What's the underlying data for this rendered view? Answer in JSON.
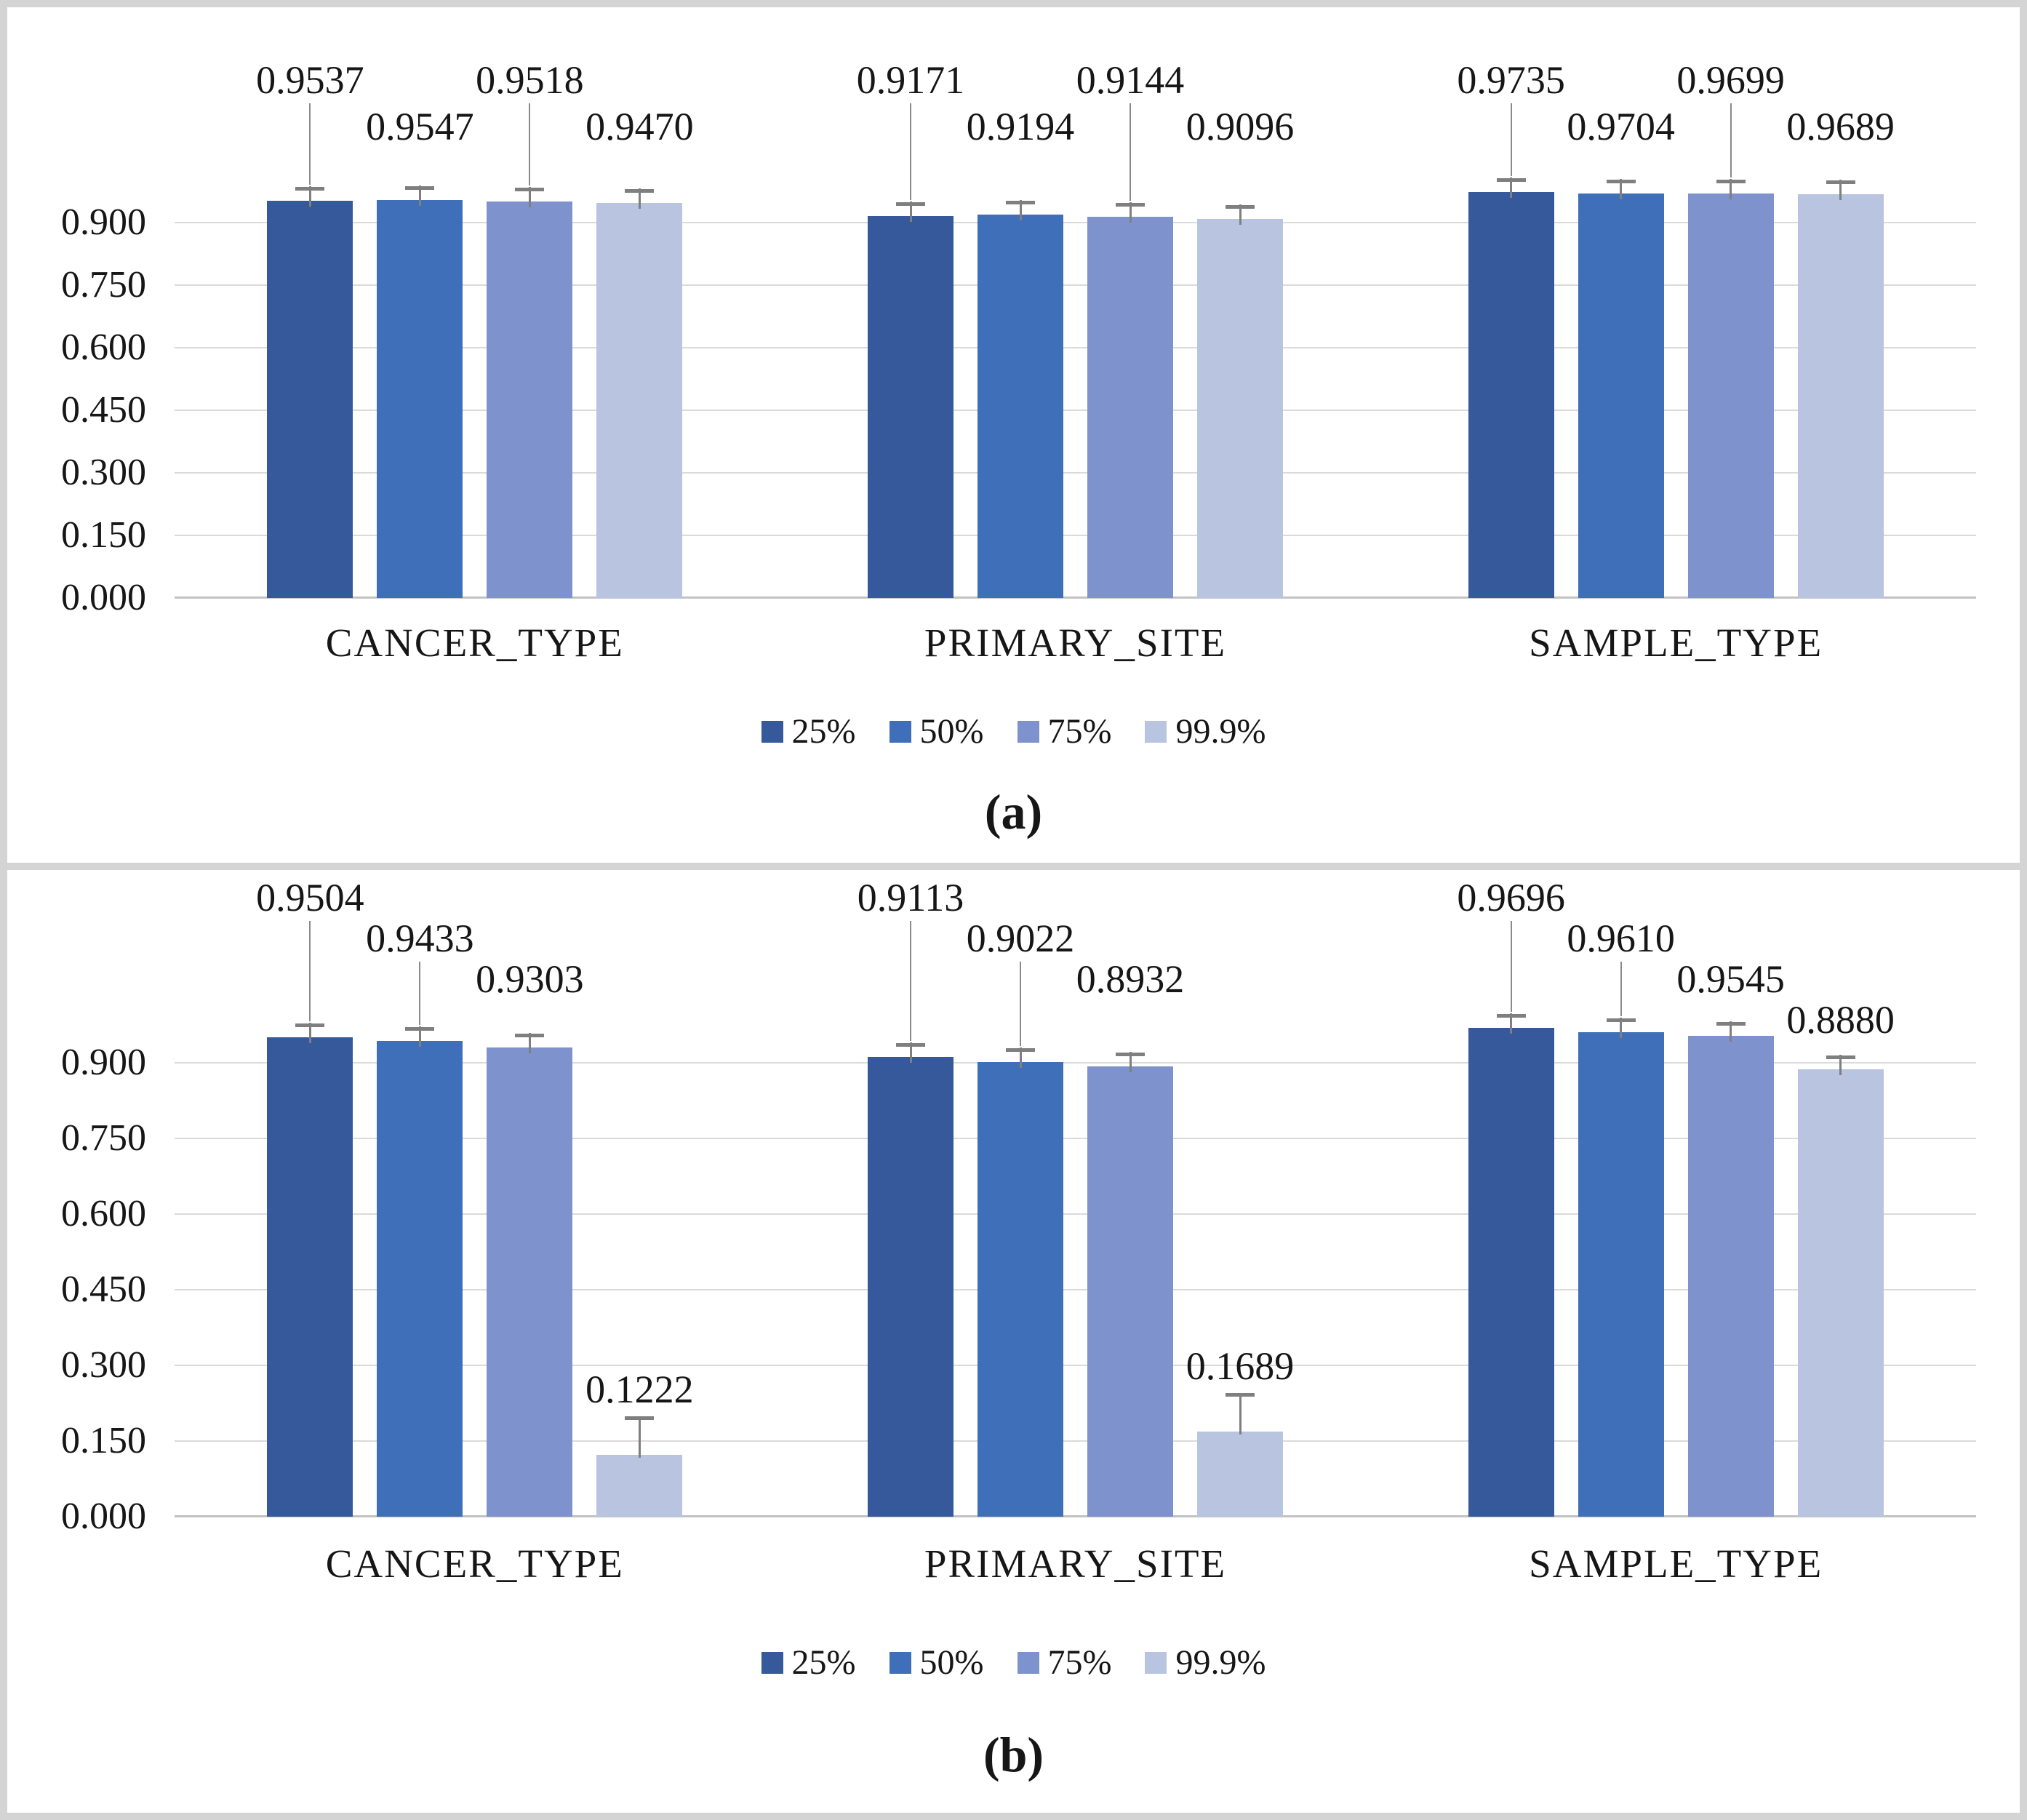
{
  "chart_data": [
    {
      "type": "bar",
      "panel_label": "(a)",
      "categories": [
        "CANCER_TYPE",
        "PRIMARY_SITE",
        "SAMPLE_TYPE"
      ],
      "series_names": [
        "25%",
        "50%",
        "75%",
        "99.9%"
      ],
      "series_colors": [
        "#35599B",
        "#3F6FB8",
        "#7E93CE",
        "#B9C4E1"
      ],
      "values": [
        [
          0.9537,
          0.9547,
          0.9518,
          0.947
        ],
        [
          0.9171,
          0.9194,
          0.9144,
          0.9096
        ],
        [
          0.9735,
          0.9704,
          0.9699,
          0.9689
        ]
      ],
      "value_labels": [
        [
          "0.9537",
          "0.9547",
          "0.9518",
          "0.9470"
        ],
        [
          "0.9171",
          "0.9194",
          "0.9144",
          "0.9096"
        ],
        [
          "0.9735",
          "0.9704",
          "0.9699",
          "0.9689"
        ]
      ],
      "yticks": [
        "0.000",
        "0.150",
        "0.300",
        "0.450",
        "0.600",
        "0.750",
        "0.900"
      ],
      "ytick_values": [
        0,
        0.15,
        0.3,
        0.45,
        0.6,
        0.75,
        0.9
      ],
      "ylim": [
        0,
        1.05
      ],
      "grid": true,
      "error_bars": true,
      "legend_position": "bottom",
      "label_rows": [
        [
          0,
          1,
          0,
          1
        ],
        [
          0,
          1,
          0,
          1
        ],
        [
          0,
          1,
          0,
          1
        ]
      ],
      "leaders": [
        [
          1,
          0,
          1,
          0
        ],
        [
          1,
          0,
          1,
          0
        ],
        [
          1,
          0,
          1,
          0
        ]
      ]
    },
    {
      "type": "bar",
      "panel_label": "(b)",
      "categories": [
        "CANCER_TYPE",
        "PRIMARY_SITE",
        "SAMPLE_TYPE"
      ],
      "series_names": [
        "25%",
        "50%",
        "75%",
        "99.9%"
      ],
      "series_colors": [
        "#35599B",
        "#3F6FB8",
        "#7E93CE",
        "#B9C4E1"
      ],
      "values": [
        [
          0.9504,
          0.9433,
          0.9303,
          0.1222
        ],
        [
          0.9113,
          0.9022,
          0.8932,
          0.1689
        ],
        [
          0.9696,
          0.961,
          0.9545,
          0.888
        ]
      ],
      "value_labels": [
        [
          "0.9504",
          "0.9433",
          "0.9303",
          "0.1222"
        ],
        [
          "0.9113",
          "0.9022",
          "0.8932",
          "0.1689"
        ],
        [
          "0.9696",
          "0.9610",
          "0.9545",
          "0.8880"
        ]
      ],
      "yticks": [
        "0.000",
        "0.150",
        "0.300",
        "0.450",
        "0.600",
        "0.750",
        "0.900"
      ],
      "ytick_values": [
        0,
        0.15,
        0.3,
        0.45,
        0.6,
        0.75,
        0.9
      ],
      "ylim": [
        0,
        1.05
      ],
      "grid": true,
      "error_bars": true,
      "legend_position": "bottom",
      "label_rows": [
        [
          0,
          1,
          2,
          -1
        ],
        [
          0,
          1,
          2,
          -1
        ],
        [
          0,
          1,
          2,
          3
        ]
      ],
      "leaders": [
        [
          1,
          1,
          0,
          0
        ],
        [
          1,
          1,
          0,
          0
        ],
        [
          1,
          1,
          0,
          0
        ]
      ]
    }
  ],
  "colors": {
    "grid_line": "#DADADA",
    "axis_line": "#C2C2C2",
    "error_bar": "#7F7F7F",
    "frame": "#D4D4D4",
    "text": "#161616"
  }
}
